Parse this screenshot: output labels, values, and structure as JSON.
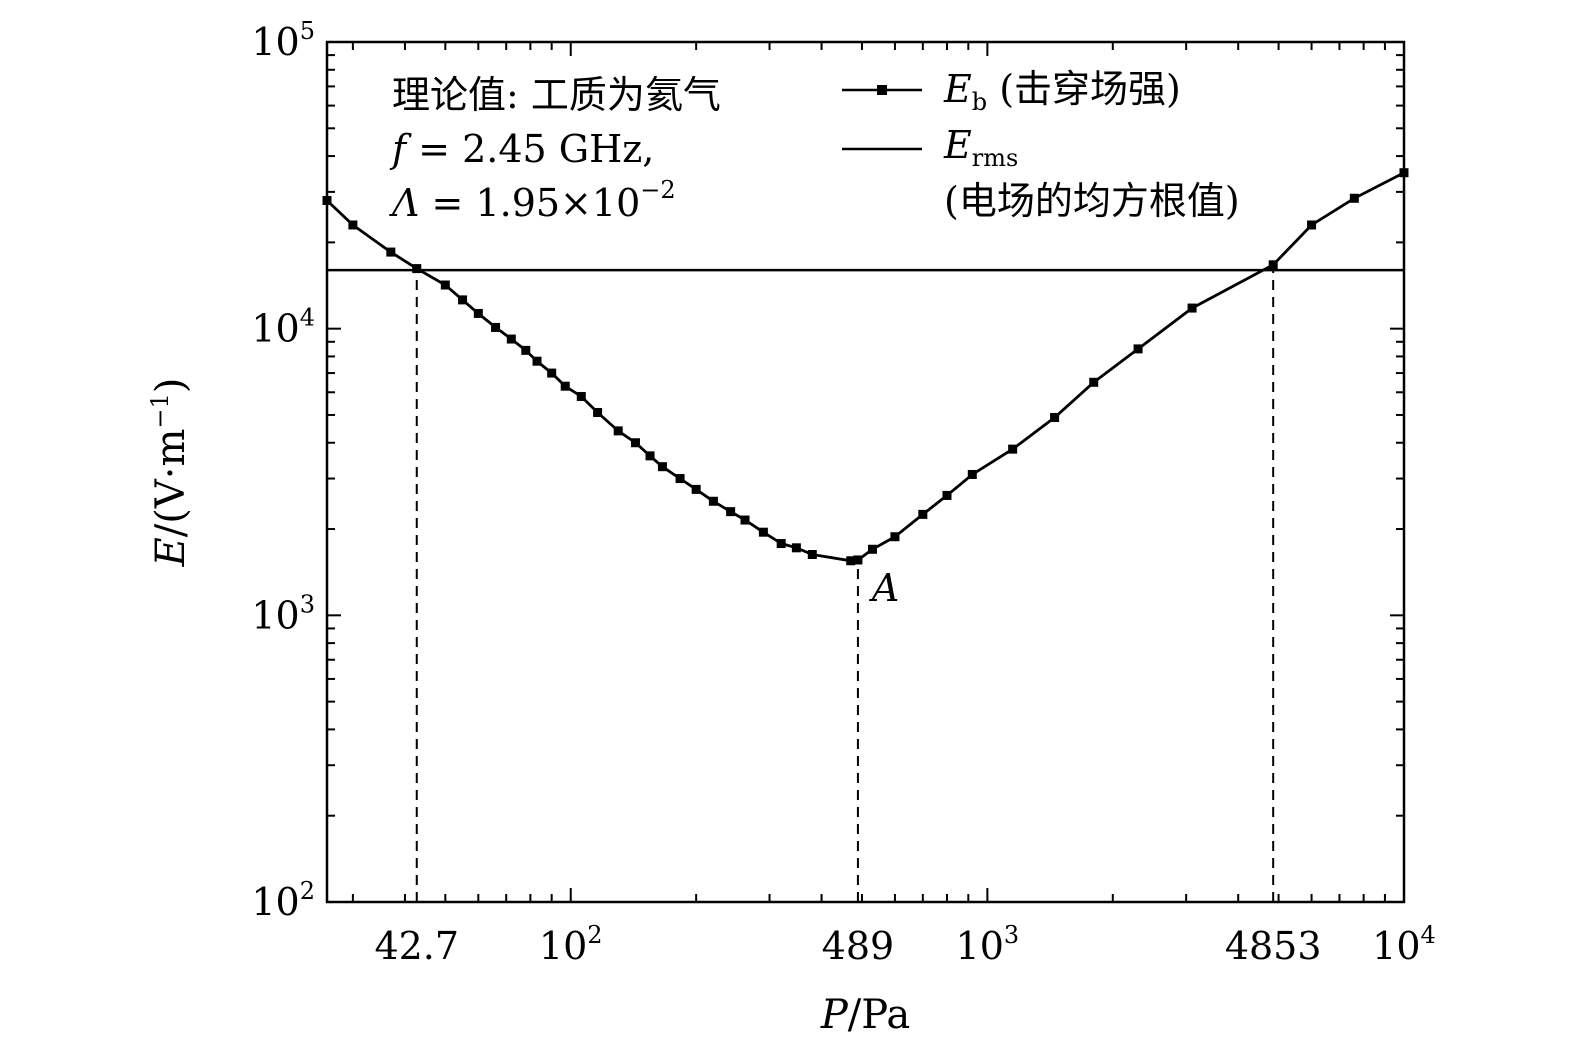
{
  "chart_data": {
    "type": "line",
    "xlabel_var": "P",
    "xlabel_unit": "/Pa",
    "ylabel_var": "E",
    "ylabel_unit": "/(V·m",
    "ylabel_exp": "−1",
    "ylabel_close": ")",
    "x_scale": "log",
    "y_scale": "log",
    "xlim": [
      26,
      10000
    ],
    "ylim": [
      100,
      100000
    ],
    "x_ticks": [
      {
        "base": "10",
        "exp": "2",
        "value": 100
      },
      {
        "base": "10",
        "exp": "3",
        "value": 1000
      },
      {
        "base": "10",
        "exp": "4",
        "value": 10000
      }
    ],
    "x_special_ticks": [
      {
        "label": "42.7",
        "value": 42.7
      },
      {
        "label": "489",
        "value": 489
      },
      {
        "label": "4853",
        "value": 4853
      }
    ],
    "y_ticks": [
      {
        "base": "10",
        "exp": "2",
        "value": 100
      },
      {
        "base": "10",
        "exp": "3",
        "value": 1000
      },
      {
        "base": "10",
        "exp": "4",
        "value": 10000
      },
      {
        "base": "10",
        "exp": "5",
        "value": 100000
      }
    ],
    "annotation_lines": [
      "理论值: 工质为氦气",
      "f = 2.45 GHz,",
      "Λ = 1.95×10"
    ],
    "annotation_exp": "−2",
    "point_label": "A",
    "point_label_x": 489,
    "point_label_y": 1550,
    "legend": {
      "placement": "top-center",
      "entries": [
        {
          "var": "E",
          "sub": "b",
          "text": " (击穿场强)",
          "marker": "square"
        },
        {
          "var": "E",
          "sub": "rms",
          "text": "",
          "text2": "(电场的均方根值)",
          "marker": "none"
        }
      ]
    },
    "dashed_verticals": [
      {
        "x": 42.7,
        "y_top": 16000
      },
      {
        "x": 489,
        "y_top": 1550
      },
      {
        "x": 4853,
        "y_top": 16000
      }
    ],
    "series": [
      {
        "name": "Eb (击穿场强)",
        "marker": "square",
        "points": [
          [
            26,
            28000
          ],
          [
            30,
            23000
          ],
          [
            37,
            18500
          ],
          [
            42.7,
            16200
          ],
          [
            50,
            14200
          ],
          [
            55,
            12600
          ],
          [
            60,
            11300
          ],
          [
            66,
            10100
          ],
          [
            72,
            9200
          ],
          [
            78,
            8400
          ],
          [
            83,
            7700
          ],
          [
            90,
            7000
          ],
          [
            97,
            6300
          ],
          [
            106,
            5800
          ],
          [
            116,
            5100
          ],
          [
            130,
            4400
          ],
          [
            143,
            4000
          ],
          [
            155,
            3600
          ],
          [
            166,
            3300
          ],
          [
            183,
            3000
          ],
          [
            200,
            2750
          ],
          [
            220,
            2500
          ],
          [
            242,
            2300
          ],
          [
            262,
            2150
          ],
          [
            290,
            1950
          ],
          [
            320,
            1780
          ],
          [
            348,
            1720
          ],
          [
            380,
            1630
          ],
          [
            470,
            1550
          ],
          [
            489,
            1560
          ],
          [
            530,
            1700
          ],
          [
            600,
            1880
          ],
          [
            700,
            2250
          ],
          [
            800,
            2620
          ],
          [
            920,
            3100
          ],
          [
            1150,
            3800
          ],
          [
            1450,
            4900
          ],
          [
            1800,
            6500
          ],
          [
            2300,
            8500
          ],
          [
            3100,
            11800
          ],
          [
            4853,
            16700
          ],
          [
            6000,
            23000
          ],
          [
            7600,
            28500
          ],
          [
            10000,
            35000
          ]
        ]
      },
      {
        "name": "Erms (电场的均方根值)",
        "marker": "none",
        "y_constant": 16000
      }
    ]
  }
}
